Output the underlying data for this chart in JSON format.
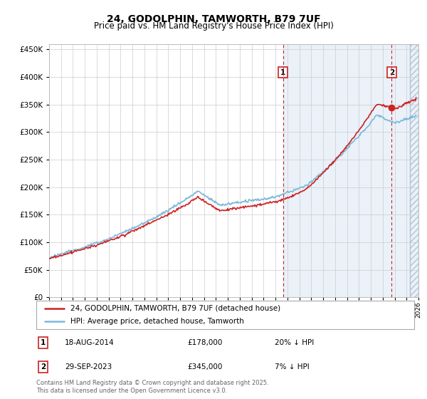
{
  "title": "24, GODOLPHIN, TAMWORTH, B79 7UF",
  "subtitle": "Price paid vs. HM Land Registry's House Price Index (HPI)",
  "legend_line1": "24, GODOLPHIN, TAMWORTH, B79 7UF (detached house)",
  "legend_line2": "HPI: Average price, detached house, Tamworth",
  "marker1_label": "18-AUG-2014",
  "marker1_price": "£178,000",
  "marker1_hpi": "20% ↓ HPI",
  "marker1_date_x": 2014.63,
  "marker2_label": "29-SEP-2023",
  "marker2_price": "£345,000",
  "marker2_hpi": "7% ↓ HPI",
  "marker2_date_x": 2023.75,
  "footer": "Contains HM Land Registry data © Crown copyright and database right 2025.\nThis data is licensed under the Open Government Licence v3.0.",
  "ylim": [
    0,
    460000
  ],
  "xlim_start": 1995.0,
  "xlim_end": 2026.0,
  "hpi_color": "#7ab8d9",
  "price_color": "#cc2222",
  "vline_color": "#cc2222",
  "background_shade_color": "#dde8f5",
  "grid_color": "#cccccc",
  "title_fontsize": 10,
  "subtitle_fontsize": 8.5
}
